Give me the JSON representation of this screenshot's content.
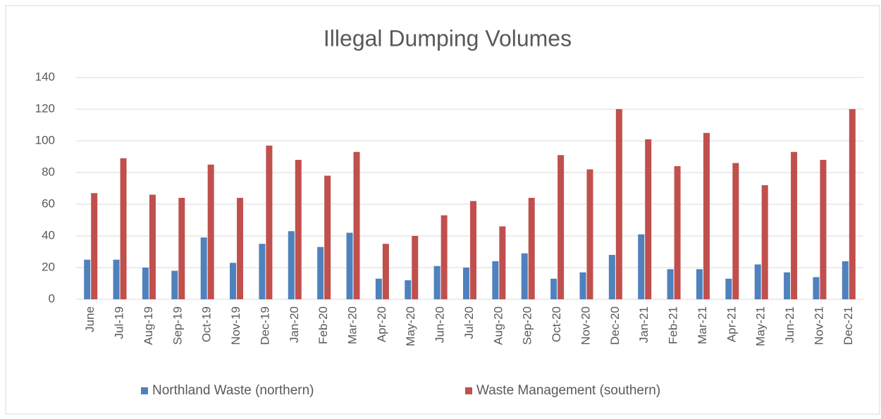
{
  "chart_data": {
    "type": "bar",
    "title": "Illegal Dumping Volumes",
    "categories": [
      "June",
      "Jul-19",
      "Aug-19",
      "Sep-19",
      "Oct-19",
      "Nov-19",
      "Dec-19",
      "Jan-20",
      "Feb-20",
      "Mar-20",
      "Apr-20",
      "May-20",
      "Jun-20",
      "Jul-20",
      "Aug-20",
      "Sep-20",
      "Oct-20",
      "Nov-20",
      "Dec-20",
      "Jan-21",
      "Feb-21",
      "Mar-21",
      "Apr-21",
      "May-21",
      "Jun-21",
      "Nov-21",
      "Dec-21"
    ],
    "series": [
      {
        "name": "Northland Waste (northern)",
        "color": "#4f81bd",
        "values": [
          25,
          25,
          20,
          18,
          39,
          23,
          35,
          43,
          33,
          42,
          13,
          12,
          21,
          20,
          24,
          29,
          13,
          17,
          28,
          41,
          19,
          19,
          13,
          22,
          17,
          14,
          24
        ]
      },
      {
        "name": "Waste Management (southern)",
        "color": "#c0504d",
        "values": [
          67,
          89,
          66,
          64,
          85,
          64,
          97,
          88,
          78,
          93,
          35,
          40,
          53,
          62,
          46,
          64,
          91,
          82,
          120,
          101,
          84,
          105,
          86,
          72,
          93,
          88,
          120
        ]
      }
    ],
    "ylim": [
      0,
      140
    ],
    "yticks": [
      0,
      20,
      40,
      60,
      80,
      100,
      120,
      140
    ],
    "grid": true,
    "legend": "bottom"
  }
}
